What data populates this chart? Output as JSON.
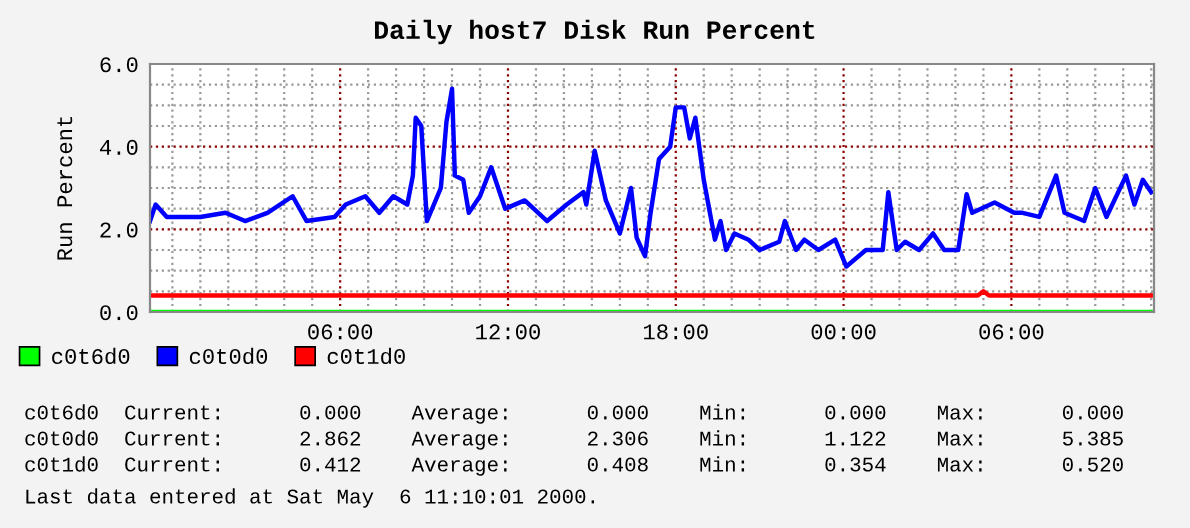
{
  "chart_data": {
    "type": "line",
    "title": "Daily host7 Disk Run Percent",
    "ylabel": "Run Percent",
    "xlim": [
      "2000-05-04T23:12",
      "2000-05-06T11:06"
    ],
    "ylim": [
      0,
      6
    ],
    "xticks": [
      {
        "value": "2000-05-05T00:00",
        "label": null
      },
      {
        "value": "2000-05-05T01:00",
        "label": null
      },
      {
        "value": "2000-05-05T02:00",
        "label": null
      },
      {
        "value": "2000-05-05T03:00",
        "label": null
      },
      {
        "value": "2000-05-05T04:00",
        "label": null
      },
      {
        "value": "2000-05-05T05:00",
        "label": null
      },
      {
        "value": "2000-05-05T06:00",
        "label": "06:00"
      },
      {
        "value": "2000-05-05T07:00",
        "label": null
      },
      {
        "value": "2000-05-05T08:00",
        "label": null
      },
      {
        "value": "2000-05-05T09:00",
        "label": null
      },
      {
        "value": "2000-05-05T10:00",
        "label": null
      },
      {
        "value": "2000-05-05T11:00",
        "label": null
      },
      {
        "value": "2000-05-05T12:00",
        "label": "12:00"
      },
      {
        "value": "2000-05-05T13:00",
        "label": null
      },
      {
        "value": "2000-05-05T14:00",
        "label": null
      },
      {
        "value": "2000-05-05T15:00",
        "label": null
      },
      {
        "value": "2000-05-05T16:00",
        "label": null
      },
      {
        "value": "2000-05-05T17:00",
        "label": null
      },
      {
        "value": "2000-05-05T18:00",
        "label": "18:00"
      },
      {
        "value": "2000-05-05T19:00",
        "label": null
      },
      {
        "value": "2000-05-05T20:00",
        "label": null
      },
      {
        "value": "2000-05-05T21:00",
        "label": null
      },
      {
        "value": "2000-05-05T22:00",
        "label": null
      },
      {
        "value": "2000-05-05T23:00",
        "label": null
      },
      {
        "value": "2000-05-06T00:00",
        "label": "00:00"
      },
      {
        "value": "2000-05-06T01:00",
        "label": null
      },
      {
        "value": "2000-05-06T02:00",
        "label": null
      },
      {
        "value": "2000-05-06T03:00",
        "label": null
      },
      {
        "value": "2000-05-06T04:00",
        "label": null
      },
      {
        "value": "2000-05-06T05:00",
        "label": null
      },
      {
        "value": "2000-05-06T06:00",
        "label": "06:00"
      },
      {
        "value": "2000-05-06T07:00",
        "label": null
      },
      {
        "value": "2000-05-06T08:00",
        "label": null
      },
      {
        "value": "2000-05-06T09:00",
        "label": null
      },
      {
        "value": "2000-05-06T10:00",
        "label": null
      },
      {
        "value": "2000-05-06T11:00",
        "label": null
      }
    ],
    "yticks": [
      {
        "value": 0,
        "label": "0.0"
      },
      {
        "value": 0.5,
        "label": null
      },
      {
        "value": 1,
        "label": null
      },
      {
        "value": 1.5,
        "label": null
      },
      {
        "value": 2,
        "label": "2.0"
      },
      {
        "value": 2.5,
        "label": null
      },
      {
        "value": 3,
        "label": null
      },
      {
        "value": 3.5,
        "label": null
      },
      {
        "value": 4,
        "label": "4.0"
      },
      {
        "value": 4.5,
        "label": null
      },
      {
        "value": 5,
        "label": null
      },
      {
        "value": 5.5,
        "label": null
      },
      {
        "value": 6,
        "label": "6.0"
      }
    ],
    "grid": true,
    "legend": "bottom left",
    "marker": "none",
    "line_style": "solid",
    "series": [
      {
        "name": "c0t6d0",
        "color": "#00ff00",
        "x": [
          "2000-05-04T23:12",
          "2000-05-06T11:00"
        ],
        "values": [
          0,
          0
        ]
      },
      {
        "name": "c0t0d0",
        "color": "#0000ff",
        "x": [
          "2000-05-04T23:12",
          "2000-05-04T23:24",
          "2000-05-04T23:48",
          "2000-05-05T01:00",
          "2000-05-05T01:54",
          "2000-05-05T02:36",
          "2000-05-05T03:24",
          "2000-05-05T04:18",
          "2000-05-05T04:48",
          "2000-05-05T05:48",
          "2000-05-05T06:12",
          "2000-05-05T06:54",
          "2000-05-05T07:24",
          "2000-05-05T07:54",
          "2000-05-05T08:24",
          "2000-05-05T08:36",
          "2000-05-05T08:42",
          "2000-05-05T08:54",
          "2000-05-05T09:06",
          "2000-05-05T09:36",
          "2000-05-05T09:48",
          "2000-05-05T10:00",
          "2000-05-05T10:06",
          "2000-05-05T10:24",
          "2000-05-05T10:36",
          "2000-05-05T11:00",
          "2000-05-05T11:24",
          "2000-05-05T11:54",
          "2000-05-05T12:36",
          "2000-05-05T13:24",
          "2000-05-05T14:06",
          "2000-05-05T14:42",
          "2000-05-05T14:48",
          "2000-05-05T15:06",
          "2000-05-05T15:30",
          "2000-05-05T16:00",
          "2000-05-05T16:24",
          "2000-05-05T16:36",
          "2000-05-05T16:54",
          "2000-05-05T17:06",
          "2000-05-05T17:24",
          "2000-05-05T17:48",
          "2000-05-05T18:00",
          "2000-05-05T18:18",
          "2000-05-05T18:30",
          "2000-05-05T18:42",
          "2000-05-05T19:00",
          "2000-05-05T19:24",
          "2000-05-05T19:36",
          "2000-05-05T19:48",
          "2000-05-05T20:06",
          "2000-05-05T20:36",
          "2000-05-05T21:00",
          "2000-05-05T21:42",
          "2000-05-05T21:54",
          "2000-05-05T22:18",
          "2000-05-05T22:36",
          "2000-05-05T23:06",
          "2000-05-05T23:42",
          "2000-05-06T00:06",
          "2000-05-06T00:48",
          "2000-05-06T01:24",
          "2000-05-06T01:36",
          "2000-05-06T01:54",
          "2000-05-06T02:12",
          "2000-05-06T02:42",
          "2000-05-06T03:12",
          "2000-05-06T03:36",
          "2000-05-06T04:06",
          "2000-05-06T04:24",
          "2000-05-06T04:36",
          "2000-05-06T05:24",
          "2000-05-06T06:06",
          "2000-05-06T06:24",
          "2000-05-06T07:00",
          "2000-05-06T07:36",
          "2000-05-06T07:54",
          "2000-05-06T08:36",
          "2000-05-06T09:00",
          "2000-05-06T09:24",
          "2000-05-06T10:06",
          "2000-05-06T10:24",
          "2000-05-06T10:42",
          "2000-05-06T11:00"
        ],
        "values": [
          2.2,
          2.6,
          2.3,
          2.3,
          2.4,
          2.2,
          2.4,
          2.8,
          2.2,
          2.3,
          2.6,
          2.8,
          2.4,
          2.8,
          2.6,
          3.3,
          4.7,
          4.5,
          2.2,
          3.0,
          4.6,
          5.4,
          3.3,
          3.2,
          2.4,
          2.8,
          3.5,
          2.5,
          2.7,
          2.2,
          2.6,
          2.9,
          2.6,
          3.9,
          2.7,
          1.9,
          3.0,
          1.8,
          1.35,
          2.4,
          3.7,
          4.0,
          4.95,
          4.95,
          4.2,
          4.7,
          3.2,
          1.75,
          2.2,
          1.5,
          1.9,
          1.75,
          1.5,
          1.7,
          2.2,
          1.5,
          1.75,
          1.5,
          1.75,
          1.1,
          1.5,
          1.5,
          2.9,
          1.5,
          1.7,
          1.5,
          1.9,
          1.5,
          1.5,
          2.85,
          2.4,
          2.65,
          2.4,
          2.4,
          2.3,
          3.3,
          2.4,
          2.2,
          3.0,
          2.3,
          3.3,
          2.6,
          3.2,
          2.9
        ]
      },
      {
        "name": "c0t1d0",
        "color": "#ff0000",
        "x": [
          "2000-05-04T23:12",
          "2000-05-05T03:00",
          "2000-05-05T06:00",
          "2000-05-05T09:00",
          "2000-05-05T12:00",
          "2000-05-05T15:00",
          "2000-05-05T18:00",
          "2000-05-05T21:00",
          "2000-05-06T00:00",
          "2000-05-06T03:00",
          "2000-05-06T04:48",
          "2000-05-06T05:00",
          "2000-05-06T05:12",
          "2000-05-06T08:00",
          "2000-05-06T11:00"
        ],
        "values": [
          0.4,
          0.4,
          0.4,
          0.4,
          0.4,
          0.4,
          0.4,
          0.4,
          0.4,
          0.4,
          0.4,
          0.5,
          0.4,
          0.4,
          0.4
        ]
      }
    ],
    "annotations": [
      "c0t6d0  Current:      0.000    Average:      0.000    Min:      0.000    Max:      0.000",
      "c0t0d0  Current:      2.862    Average:      2.306    Min:      1.122    Max:      5.385",
      "c0t1d0  Current:      0.412    Average:      0.408    Min:      0.354    Max:      0.520",
      "Last data entered at Sat May  6 11:10:01 2000."
    ]
  }
}
